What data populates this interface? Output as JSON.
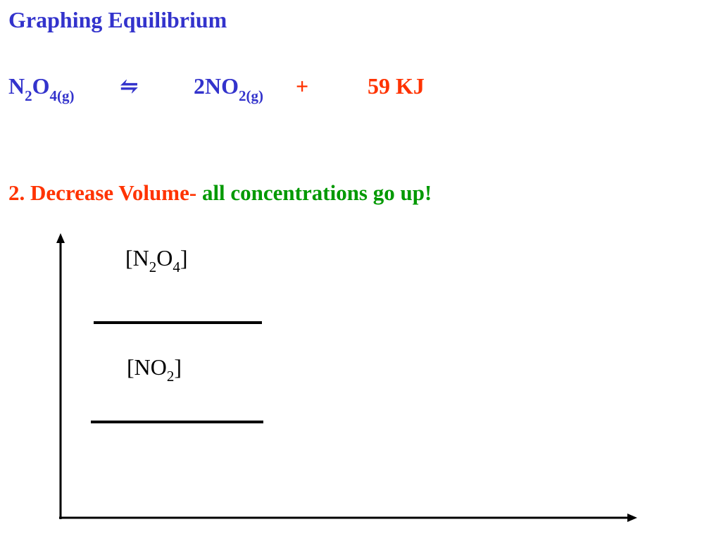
{
  "header": {
    "title": "Graphing Equilibrium"
  },
  "equation": {
    "reactant": {
      "n": "N",
      "n_sub": "2",
      "o": "O",
      "o_sub": "4(g)"
    },
    "arrow": "⇋",
    "product": {
      "text": "2NO",
      "sub": "2(g)"
    },
    "plus": "+",
    "energy": "59 KJ"
  },
  "statement": {
    "lead": "2. Decrease Volume-",
    "result": "all concentrations go up!"
  },
  "graph": {
    "labels": [
      {
        "open": "[N",
        "n_sub": "2",
        "o": "O",
        "o_sub": "4",
        "close": "]"
      },
      {
        "open": "[NO",
        "sub": "2",
        "close": "]"
      }
    ]
  }
}
